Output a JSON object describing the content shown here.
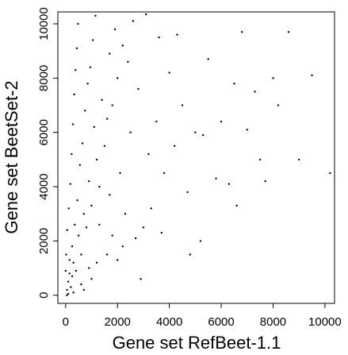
{
  "chart_data": {
    "type": "scatter",
    "x_label": "Gene set RefBeet-1.1",
    "y_label": "Gene set BeetSet-2",
    "xlim": [
      -300,
      10370
    ],
    "ylim": [
      -300,
      10440
    ],
    "xticks": [
      0,
      2000,
      4000,
      6000,
      8000,
      10000
    ],
    "yticks": [
      0,
      2000,
      4000,
      6000,
      8000,
      10000
    ],
    "grid": false,
    "series": [
      {
        "color": "#000000",
        "x": [
          50,
          100,
          150,
          200,
          300,
          250,
          400,
          500,
          350,
          600,
          700,
          450,
          800,
          900,
          550,
          1000,
          1200,
          650,
          1100,
          750,
          1300,
          1500,
          1400,
          850,
          1600,
          950,
          1800,
          1700,
          1050,
          2000,
          1900,
          1150,
          2200,
          2400,
          2600,
          2800,
          2500,
          2100,
          2300,
          1800,
          1600,
          1200,
          2700,
          3000,
          3300,
          3200,
          3500,
          3800,
          4000,
          4200,
          4500,
          4700,
          5000,
          5200,
          5500,
          5800,
          6000,
          6300,
          6500,
          6800,
          7000,
          7300,
          7500,
          7700,
          8000,
          8200,
          8600,
          9000,
          9500,
          10200,
          3600,
          3100,
          4300,
          2900,
          2000,
          1000,
          700,
          300,
          100,
          0,
          20,
          60,
          120,
          180,
          230,
          280,
          330,
          380,
          430,
          480,
          50,
          150,
          250,
          600,
          900,
          1300,
          1700,
          2200,
          3700,
          4800,
          5300,
          6600
        ],
        "values": [
          200,
          500,
          800,
          300,
          1200,
          1800,
          900,
          2200,
          2600,
          1500,
          3000,
          3500,
          2500,
          4200,
          4800,
          3300,
          5000,
          5600,
          6200,
          6800,
          4000,
          5500,
          7200,
          7800,
          6500,
          8400,
          7000,
          8900,
          9400,
          8000,
          9800,
          10300,
          9200,
          8600,
          10100,
          7600,
          6000,
          4500,
          3000,
          2200,
          1500,
          1200,
          2100,
          2500,
          3200,
          5200,
          6400,
          4500,
          8200,
          5500,
          7000,
          3800,
          6000,
          2000,
          8700,
          4300,
          6400,
          4100,
          7800,
          9700,
          6100,
          7500,
          5000,
          4200,
          8000,
          7000,
          9700,
          5000,
          8100,
          4500,
          9500,
          10350,
          9600,
          600,
          1300,
          600,
          200,
          100,
          50,
          900,
          1500,
          2400,
          3200,
          4100,
          5200,
          6300,
          7400,
          8300,
          9100,
          10000,
          0,
          1300,
          700,
          400,
          1000,
          2600,
          3700,
          1800,
          2300,
          1500,
          5900,
          3300
        ]
      }
    ]
  }
}
